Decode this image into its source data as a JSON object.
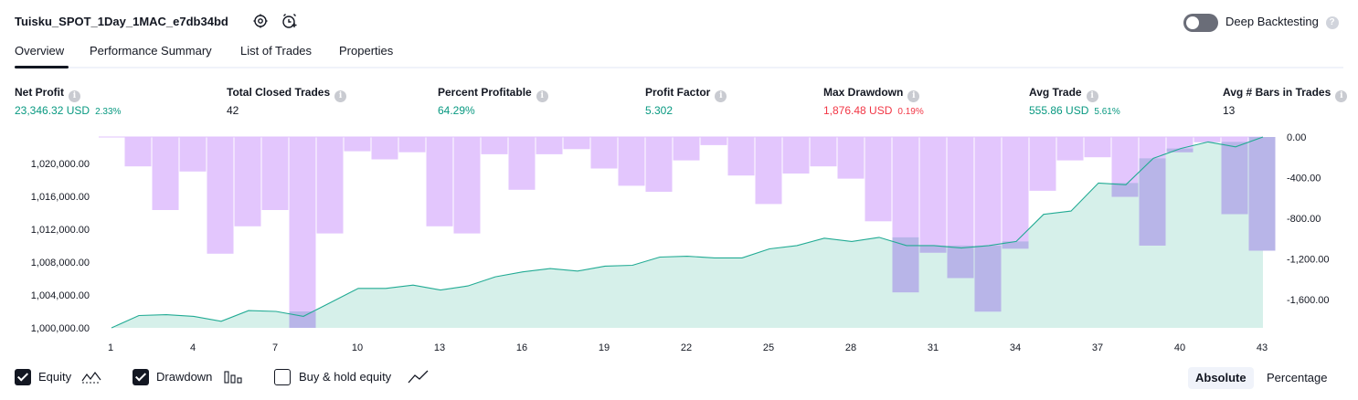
{
  "header": {
    "title": "Tuisku_SPOT_1Day_1MAC_e7db34bd",
    "deep_backtesting_label": "Deep Backtesting",
    "deep_backtesting_on": false,
    "help_glyph": "?"
  },
  "tabs": [
    {
      "label": "Overview",
      "active": true
    },
    {
      "label": "Performance Summary",
      "active": false
    },
    {
      "label": "List of Trades",
      "active": false
    },
    {
      "label": "Properties",
      "active": false
    }
  ],
  "metrics": {
    "info_glyph": "i",
    "net_profit": {
      "label": "Net Profit",
      "value": "23,346.32 USD",
      "pct": "2.33%"
    },
    "total_closed_trades": {
      "label": "Total Closed Trades",
      "value": "42"
    },
    "percent_profitable": {
      "label": "Percent Profitable",
      "value": "64.29%"
    },
    "profit_factor": {
      "label": "Profit Factor",
      "value": "5.302"
    },
    "max_drawdown": {
      "label": "Max Drawdown",
      "value": "1,876.48 USD",
      "pct": "0.19%"
    },
    "avg_trade": {
      "label": "Avg Trade",
      "value": "555.86 USD",
      "pct": "5.61%"
    },
    "avg_bars": {
      "label": "Avg # Bars in Trades",
      "value": "13"
    }
  },
  "chart_data": {
    "type": "area+bar",
    "x": [
      1,
      2,
      3,
      4,
      5,
      6,
      7,
      8,
      9,
      10,
      11,
      12,
      13,
      14,
      15,
      16,
      17,
      18,
      19,
      20,
      21,
      22,
      23,
      24,
      25,
      26,
      27,
      28,
      29,
      30,
      31,
      32,
      33,
      34,
      35,
      36,
      37,
      38,
      39,
      40,
      41,
      42,
      43
    ],
    "x_ticks": [
      "1",
      "4",
      "7",
      "10",
      "13",
      "16",
      "19",
      "22",
      "25",
      "28",
      "31",
      "34",
      "37",
      "40",
      "43"
    ],
    "equity": {
      "name": "Equity",
      "values": [
        1000000,
        1001500,
        1001600,
        1001400,
        1000800,
        1002100,
        1002000,
        1001400,
        1003100,
        1004800,
        1004800,
        1005200,
        1004600,
        1005100,
        1006200,
        1006800,
        1007200,
        1006900,
        1007500,
        1007600,
        1008600,
        1008700,
        1008500,
        1008500,
        1009600,
        1010000,
        1010900,
        1010500,
        1011000,
        1010000,
        1010000,
        1009700,
        1010000,
        1010500,
        1013800,
        1014200,
        1017600,
        1017400,
        1020600,
        1021800,
        1022600,
        1022000,
        1023200
      ]
    },
    "drawdown": {
      "name": "Drawdown",
      "values": [
        -290,
        -720,
        -340,
        -1150,
        -880,
        -720,
        -1880,
        -950,
        -140,
        -220,
        -150,
        -880,
        -950,
        -170,
        -520,
        -170,
        -120,
        -310,
        -480,
        -540,
        -230,
        -80,
        -380,
        -660,
        -360,
        -290,
        -410,
        -830,
        -1530,
        -1140,
        -1390,
        -1720,
        -1100,
        -530,
        -230,
        -200,
        -590,
        -1070,
        -150,
        -50,
        -760,
        -1120
      ],
      "note_positions": "one bar per trade between x and x+1"
    },
    "left_axis": {
      "ticks": [
        "1,000,000.00",
        "1,004,000.00",
        "1,008,000.00",
        "1,012,000.00",
        "1,016,000.00",
        "1,020,000.00"
      ],
      "tick_values": [
        1000000,
        1004000,
        1008000,
        1012000,
        1016000,
        1020000
      ],
      "range": [
        1000000,
        1023200
      ]
    },
    "right_axis": {
      "ticks": [
        "0.00",
        "-400.00",
        "-800.00",
        "-1,200.00",
        "-1,600.00"
      ],
      "tick_values": [
        0,
        -400,
        -800,
        -1200,
        -1600
      ],
      "range": [
        -1880,
        0
      ]
    },
    "colors": {
      "equity_line": "#22ab94",
      "equity_fill": "#d6f0ea",
      "drawdown_bar": "#e1c3fd",
      "overlap_bar": "#b0b1e4"
    }
  },
  "legend": {
    "equity": {
      "label": "Equity",
      "checked": true,
      "icon": "equity-icon"
    },
    "drawdown": {
      "label": "Drawdown",
      "checked": true,
      "icon": "drawdown-icon"
    },
    "buy_hold": {
      "label": "Buy & hold equity",
      "checked": false,
      "icon": "buy-hold-icon"
    }
  },
  "scale_toggle": {
    "absolute": "Absolute",
    "percentage": "Percentage",
    "selected": "Absolute"
  }
}
